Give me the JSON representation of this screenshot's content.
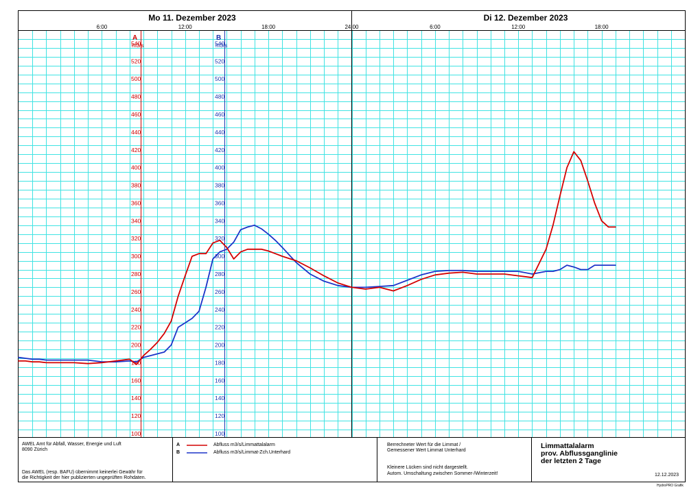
{
  "header": {
    "day1": "Mo  11. Dezember  2023",
    "day2": "Di  12. Dezember  2023",
    "time_labels": [
      "6:00",
      "12:00",
      "18:00",
      "24:00",
      "6:00",
      "12:00",
      "18:00"
    ]
  },
  "axis_a": {
    "letter": "A",
    "unit": "m3/s",
    "color": "#cc0000"
  },
  "axis_b": {
    "letter": "B",
    "unit": "m3/s",
    "color": "#1a35b0"
  },
  "colors": {
    "grid": "#3fe3e3",
    "series_a": "#d40000",
    "series_b": "#1c33c8"
  },
  "chart_data": {
    "type": "line",
    "xlabel": "",
    "ylabel": "m3/s",
    "x_unit": "hours since 11.12.2023 00:00",
    "xlim": [
      0,
      48
    ],
    "ylim": [
      100,
      550
    ],
    "y_ticks": [
      100,
      120,
      140,
      160,
      180,
      200,
      220,
      240,
      260,
      280,
      300,
      320,
      340,
      360,
      380,
      400,
      420,
      440,
      460,
      480,
      500,
      520,
      540
    ],
    "grid": true,
    "series": [
      {
        "name": "Abfluss m3/s/Limmattalalarm",
        "key": "A",
        "x": [
          0,
          0.5,
          1,
          1.5,
          2,
          2.5,
          3,
          3.5,
          4,
          5,
          6,
          7,
          8,
          8.5,
          9,
          9.5,
          10,
          10.5,
          11,
          11.5,
          12,
          12.5,
          13,
          13.5,
          14,
          14.5,
          15,
          15.5,
          16,
          16.5,
          17,
          17.5,
          18,
          18.5,
          19,
          20,
          21,
          22,
          23,
          24,
          25,
          26,
          27,
          28,
          29,
          30,
          31,
          32,
          33,
          34,
          35,
          36,
          37,
          38,
          38.5,
          39,
          39.5,
          40,
          40.5,
          41,
          41.5,
          42,
          42.5,
          43
        ],
        "y": [
          182,
          182,
          181,
          181,
          180,
          180,
          180,
          180,
          180,
          179,
          180,
          182,
          184,
          178,
          188,
          195,
          203,
          213,
          227,
          255,
          278,
          300,
          303,
          303,
          315,
          318,
          310,
          297,
          305,
          308,
          308,
          308,
          306,
          303,
          300,
          295,
          287,
          278,
          270,
          265,
          263,
          265,
          261,
          267,
          274,
          279,
          281,
          282,
          280,
          280,
          280,
          278,
          276,
          308,
          335,
          368,
          400,
          418,
          408,
          385,
          360,
          340,
          333,
          333
        ]
      },
      {
        "name": "Abfluss m3/s/Limmat-Zch.Unterhard",
        "key": "B",
        "x": [
          0,
          0.5,
          1,
          1.5,
          2,
          2.5,
          3,
          3.5,
          4,
          5,
          6,
          7,
          8,
          8.5,
          9,
          9.5,
          10,
          10.5,
          11,
          11.5,
          12,
          12.5,
          13,
          13.5,
          14,
          14.5,
          15,
          15.5,
          16,
          16.5,
          17,
          17.5,
          18,
          18.5,
          19,
          20,
          21,
          22,
          23,
          24,
          25,
          26,
          27,
          28,
          29,
          30,
          31,
          32,
          33,
          34,
          35,
          36,
          37,
          38,
          38.5,
          39,
          39.5,
          40,
          40.5,
          41,
          41.5,
          42,
          42.5,
          43
        ],
        "y": [
          186,
          185,
          184,
          184,
          183,
          183,
          183,
          183,
          183,
          183,
          181,
          181,
          182,
          181,
          186,
          188,
          190,
          192,
          200,
          220,
          225,
          230,
          238,
          265,
          297,
          305,
          308,
          316,
          330,
          333,
          335,
          331,
          325,
          318,
          310,
          293,
          280,
          272,
          267,
          265,
          265,
          266,
          267,
          273,
          279,
          283,
          284,
          284,
          283,
          283,
          283,
          283,
          280,
          283,
          283,
          285,
          290,
          288,
          285,
          285,
          290,
          290,
          290,
          290
        ]
      }
    ]
  },
  "footer": {
    "org_line1": "AWEL  Amt für Abfall, Wasser, Energie und Luft",
    "org_line2": "8090 Zürich",
    "disclaimer_line1": "Das AWEL (resp. BAFU) übernimmt keinerlei Gewähr für",
    "disclaimer_line2": "die Richtigkeit der hier publizierten ungeprüften Rohdaten.",
    "legend_a_key": "A",
    "legend_a_label": "Abfluss m3/s/Limmattalalarm",
    "legend_b_key": "B",
    "legend_b_label": "Abfluss m3/s/Limmat-Zch.Unterhard",
    "note_line1": "Berrechneter Wert für die Limmat /",
    "note_line2": "Gemessener Wert Limmat Unterhard",
    "note_line3": "Kleinere Lücken sind nicht dargestellt.",
    "note_line4": "Autom. Umschaltung zwischen Sommer-/Winterzeit!",
    "title_line1": "Limmattalalarm",
    "title_line2": "prov. Abflussganglinie",
    "title_line3": "der letzten 2 Tage",
    "date": "12.12.2023",
    "credit": "HydroPRO Grafik"
  }
}
